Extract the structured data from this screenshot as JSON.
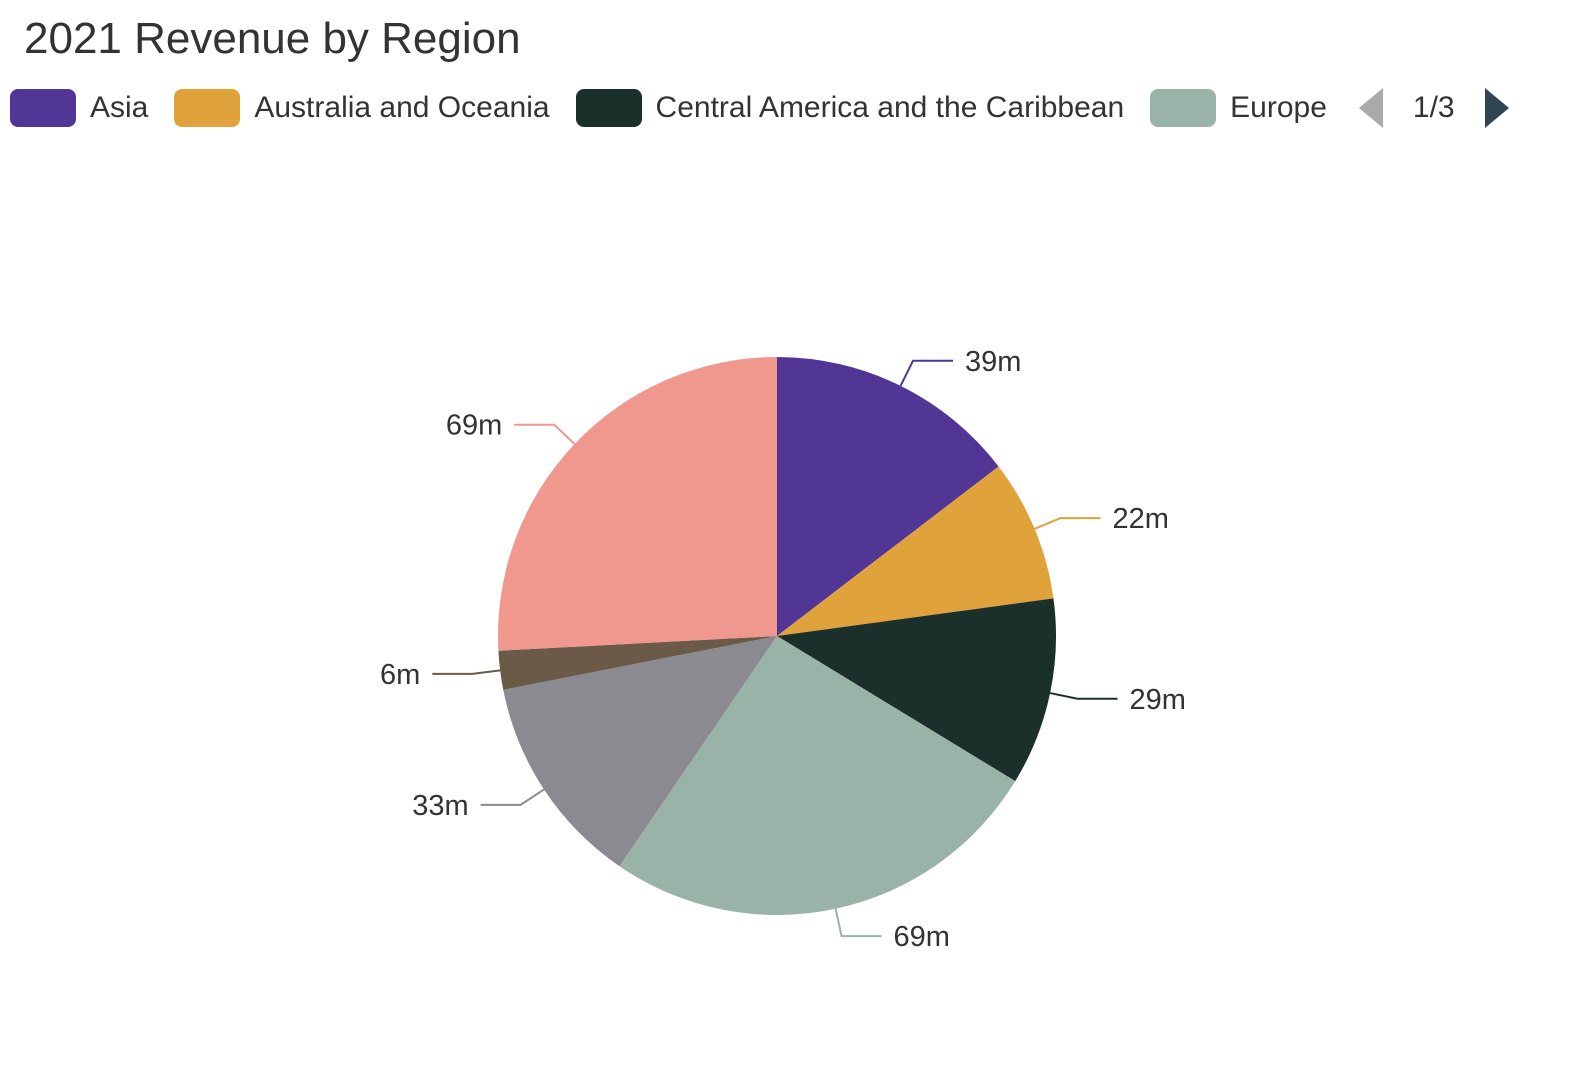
{
  "chart_data": {
    "type": "pie",
    "title": "2021 Revenue by Region",
    "unit_suffix": "m",
    "slices": [
      {
        "name": "Asia",
        "value": 39,
        "label": "39m",
        "color": "#523695"
      },
      {
        "name": "Australia and Oceania",
        "value": 22,
        "label": "22m",
        "color": "#e0a23b"
      },
      {
        "name": "Central America and the Caribbean",
        "value": 29,
        "label": "29m",
        "color": "#1b302b"
      },
      {
        "name": "Europe",
        "value": 69,
        "label": "69m",
        "color": "#9ab3a8"
      },
      {
        "value": 33,
        "label": "33m",
        "color": "#8c8a91"
      },
      {
        "value": 6,
        "label": "6m",
        "color": "#6b5a48"
      },
      {
        "value": 69,
        "label": "69m",
        "color": "#f0988e"
      }
    ],
    "start_angle": "12 o'clock, clockwise",
    "legend": {
      "placement": "top",
      "page": "1/3",
      "visible_items": 4
    }
  }
}
